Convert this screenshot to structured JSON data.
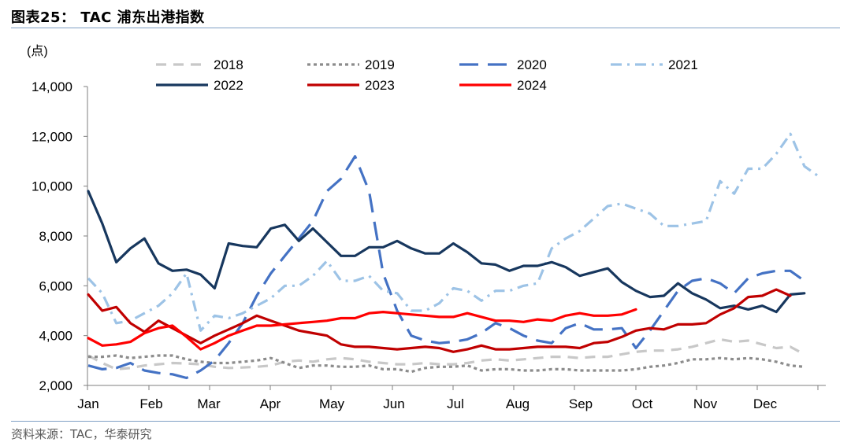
{
  "figure": {
    "title": "图表25： TAC 浦东出港指数",
    "source": "资料来源：TAC，华泰研究"
  },
  "chart_data": {
    "type": "line",
    "ylabel": "(点)",
    "ylim": [
      2000,
      14000
    ],
    "yticks": [
      2000,
      4000,
      6000,
      8000,
      10000,
      12000,
      14000
    ],
    "ytick_labels": [
      "2,000",
      "4,000",
      "6,000",
      "8,000",
      "10,000",
      "12,000",
      "14,000"
    ],
    "x_tick_labels": [
      "Jan",
      "Feb",
      "Mar",
      "Apr",
      "May",
      "Jun",
      "Jul",
      "Aug",
      "Sep",
      "Oct",
      "Nov",
      "Dec"
    ],
    "x_unit": "week",
    "x_range": [
      1,
      52
    ],
    "grid": false,
    "legend_position": "top",
    "series": [
      {
        "name": "2018",
        "color": "#c8c8c8",
        "style": "dash",
        "values": [
          3200,
          2900,
          2650,
          2700,
          2800,
          2850,
          2900,
          2880,
          2850,
          2750,
          2700,
          2720,
          2750,
          2800,
          2950,
          3000,
          2950,
          3050,
          3100,
          3050,
          2950,
          2900,
          2850,
          2850,
          2900,
          2850,
          2850,
          2900,
          3000,
          3050,
          3000,
          3050,
          3100,
          3150,
          3150,
          3100,
          3150,
          3150,
          3250,
          3350,
          3400,
          3400,
          3450,
          3550,
          3700,
          3850,
          3750,
          3800,
          3650,
          3500,
          3550,
          3250
        ]
      },
      {
        "name": "2019",
        "color": "#8c8c8c",
        "style": "dot",
        "values": [
          3150,
          3150,
          3200,
          3100,
          3150,
          3200,
          3200,
          3050,
          2950,
          2900,
          2900,
          2950,
          3000,
          3100,
          2900,
          2700,
          2800,
          2800,
          2750,
          2750,
          2800,
          2650,
          2650,
          2550,
          2700,
          2750,
          2750,
          2800,
          2600,
          2650,
          2650,
          2600,
          2600,
          2650,
          2650,
          2600,
          2600,
          2600,
          2600,
          2650,
          2750,
          2800,
          2900,
          3050,
          3050,
          3100,
          3050,
          3100,
          3050,
          2950,
          2800,
          2750
        ]
      },
      {
        "name": "2020",
        "color": "#4472c4",
        "style": "longdash",
        "values": [
          2800,
          2650,
          2700,
          2900,
          2600,
          2500,
          2450,
          2300,
          2600,
          3000,
          3700,
          4500,
          5600,
          6500,
          7200,
          7900,
          8600,
          9800,
          10300,
          11200,
          9800,
          6500,
          5000,
          4000,
          3800,
          3700,
          3750,
          3850,
          4100,
          4500,
          4300,
          4000,
          3800,
          3700,
          4300,
          4500,
          4250,
          4250,
          4300,
          3500,
          4200,
          5000,
          5800,
          6200,
          6300,
          6100,
          5700,
          6300,
          6500,
          6600,
          6600,
          6200
        ]
      },
      {
        "name": "2021",
        "color": "#9dc3e6",
        "style": "dashdot",
        "values": [
          6300,
          5700,
          4500,
          4600,
          4900,
          5200,
          5700,
          6500,
          4200,
          4800,
          4700,
          4900,
          5200,
          5500,
          6000,
          6000,
          6400,
          7000,
          6200,
          6200,
          6400,
          5800,
          5700,
          5000,
          5000,
          5300,
          5900,
          5800,
          5400,
          5800,
          5800,
          6000,
          6100,
          7500,
          7900,
          8200,
          8700,
          9200,
          9300,
          9100,
          8900,
          8400,
          8400,
          8500,
          8600,
          10200,
          9700,
          10700,
          10700,
          11300,
          12100,
          10800,
          10400
        ]
      },
      {
        "name": "2022",
        "color": "#17375e",
        "style": "solid",
        "values": [
          9800,
          8500,
          6950,
          7500,
          7900,
          6900,
          6600,
          6650,
          6450,
          5900,
          7700,
          7600,
          7550,
          8300,
          8450,
          7800,
          8300,
          7750,
          7200,
          7200,
          7550,
          7550,
          7800,
          7500,
          7300,
          7300,
          7700,
          7350,
          6900,
          6850,
          6600,
          6800,
          6800,
          6950,
          6750,
          6400,
          6550,
          6700,
          6150,
          5800,
          5550,
          5600,
          6100,
          5700,
          5450,
          5100,
          5200,
          5050,
          5200,
          4950,
          5650,
          5700
        ]
      },
      {
        "name": "2023",
        "color": "#c00000",
        "style": "solid",
        "values": [
          5650,
          5000,
          5150,
          4500,
          4150,
          4600,
          4300,
          4000,
          3700,
          4000,
          4250,
          4500,
          4800,
          4600,
          4400,
          4200,
          4100,
          4000,
          3650,
          3550,
          3550,
          3500,
          3450,
          3500,
          3550,
          3500,
          3350,
          3450,
          3600,
          3450,
          3450,
          3500,
          3550,
          3550,
          3550,
          3500,
          3700,
          3750,
          3950,
          4200,
          4300,
          4250,
          4450,
          4450,
          4500,
          4850,
          5100,
          5550,
          5600,
          5850,
          5600
        ]
      },
      {
        "name": "2024",
        "color": "#ff0000",
        "style": "solid",
        "values": [
          3900,
          3600,
          3650,
          3750,
          4100,
          4300,
          4400,
          3950,
          3450,
          3700,
          4000,
          4200,
          4400,
          4400,
          4450,
          4500,
          4550,
          4600,
          4700,
          4700,
          4900,
          4950,
          4900,
          4850,
          4800,
          4750,
          4750,
          4900,
          4750,
          4600,
          4600,
          4550,
          4650,
          4600,
          4800,
          4900,
          4800,
          4800,
          4850,
          5050
        ]
      }
    ]
  }
}
